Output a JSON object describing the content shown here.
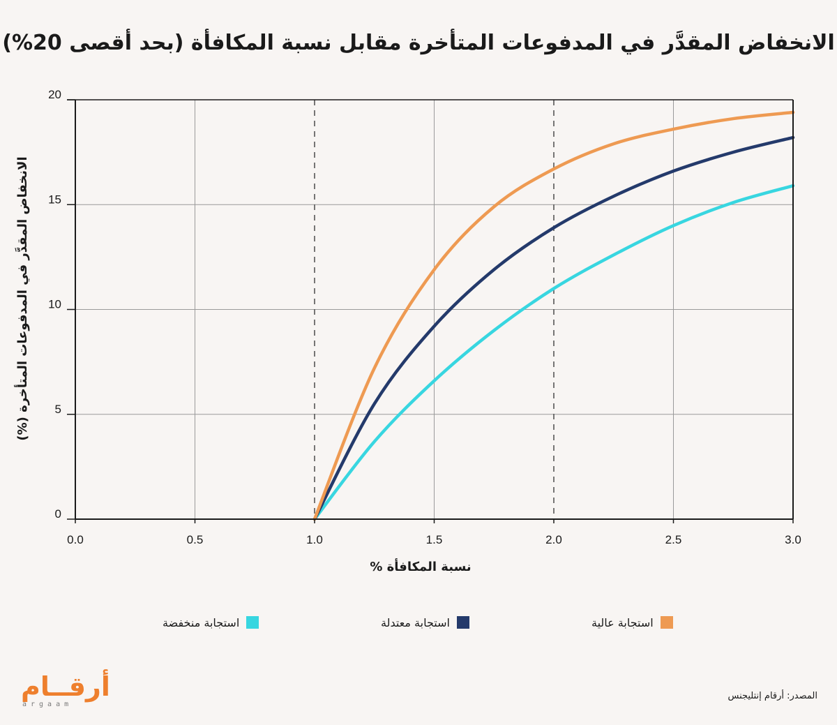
{
  "title": "الانخفاض المقدَّر في المدفوعات المتأخرة مقابل نسبة المكافأة (بحد أقصى 20%)",
  "source": "المصدر: أرقام إنتليجنس",
  "logo": {
    "arabic": "أرقــام",
    "latin": "argaam"
  },
  "colors": {
    "high": "#ee9a52",
    "moderate": "#243a6b",
    "low": "#38d6e0",
    "grid": "#9a9a9a",
    "axis": "#1a1a1a",
    "background": "#f8f5f3"
  },
  "legend": [
    {
      "label": "استجابة عالية",
      "color": "#ee9a52"
    },
    {
      "label": "استجابة معتدلة",
      "color": "#243a6b"
    },
    {
      "label": "استجابة منخفضة",
      "color": "#38d6e0"
    }
  ],
  "chart_data": {
    "type": "line",
    "title": "الانخفاض المقدَّر في المدفوعات المتأخرة مقابل نسبة المكافأة (بحد أقصى 20%)",
    "xlabel": "نسبة المكافأة %",
    "ylabel": "الانخفاض المقدَّر في المدفوعات المتأخرة (%)",
    "xlim": [
      0,
      3
    ],
    "ylim": [
      0,
      20
    ],
    "x_ticks": [
      "0.0",
      "0.5",
      "1.0",
      "1.5",
      "2.0",
      "2.5",
      "3.0"
    ],
    "y_ticks": [
      "0",
      "5",
      "10",
      "15",
      "20"
    ],
    "grid": true,
    "reference_lines_x": [
      1.0,
      2.0
    ],
    "legend_position": "bottom",
    "x": [
      1.0,
      1.25,
      1.5,
      1.75,
      2.0,
      2.25,
      2.5,
      2.75,
      3.0
    ],
    "series": [
      {
        "name": "استجابة عالية",
        "color": "#ee9a52",
        "values": [
          0,
          7.2,
          11.9,
          14.9,
          16.7,
          17.9,
          18.6,
          19.1,
          19.4
        ]
      },
      {
        "name": "استجابة معتدلة",
        "color": "#243a6b",
        "values": [
          0,
          5.5,
          9.2,
          11.9,
          13.9,
          15.4,
          16.6,
          17.5,
          18.2
        ]
      },
      {
        "name": "استجابة منخفضة",
        "color": "#38d6e0",
        "values": [
          0,
          3.7,
          6.6,
          9.0,
          11.0,
          12.6,
          14.0,
          15.1,
          15.9
        ]
      }
    ]
  }
}
